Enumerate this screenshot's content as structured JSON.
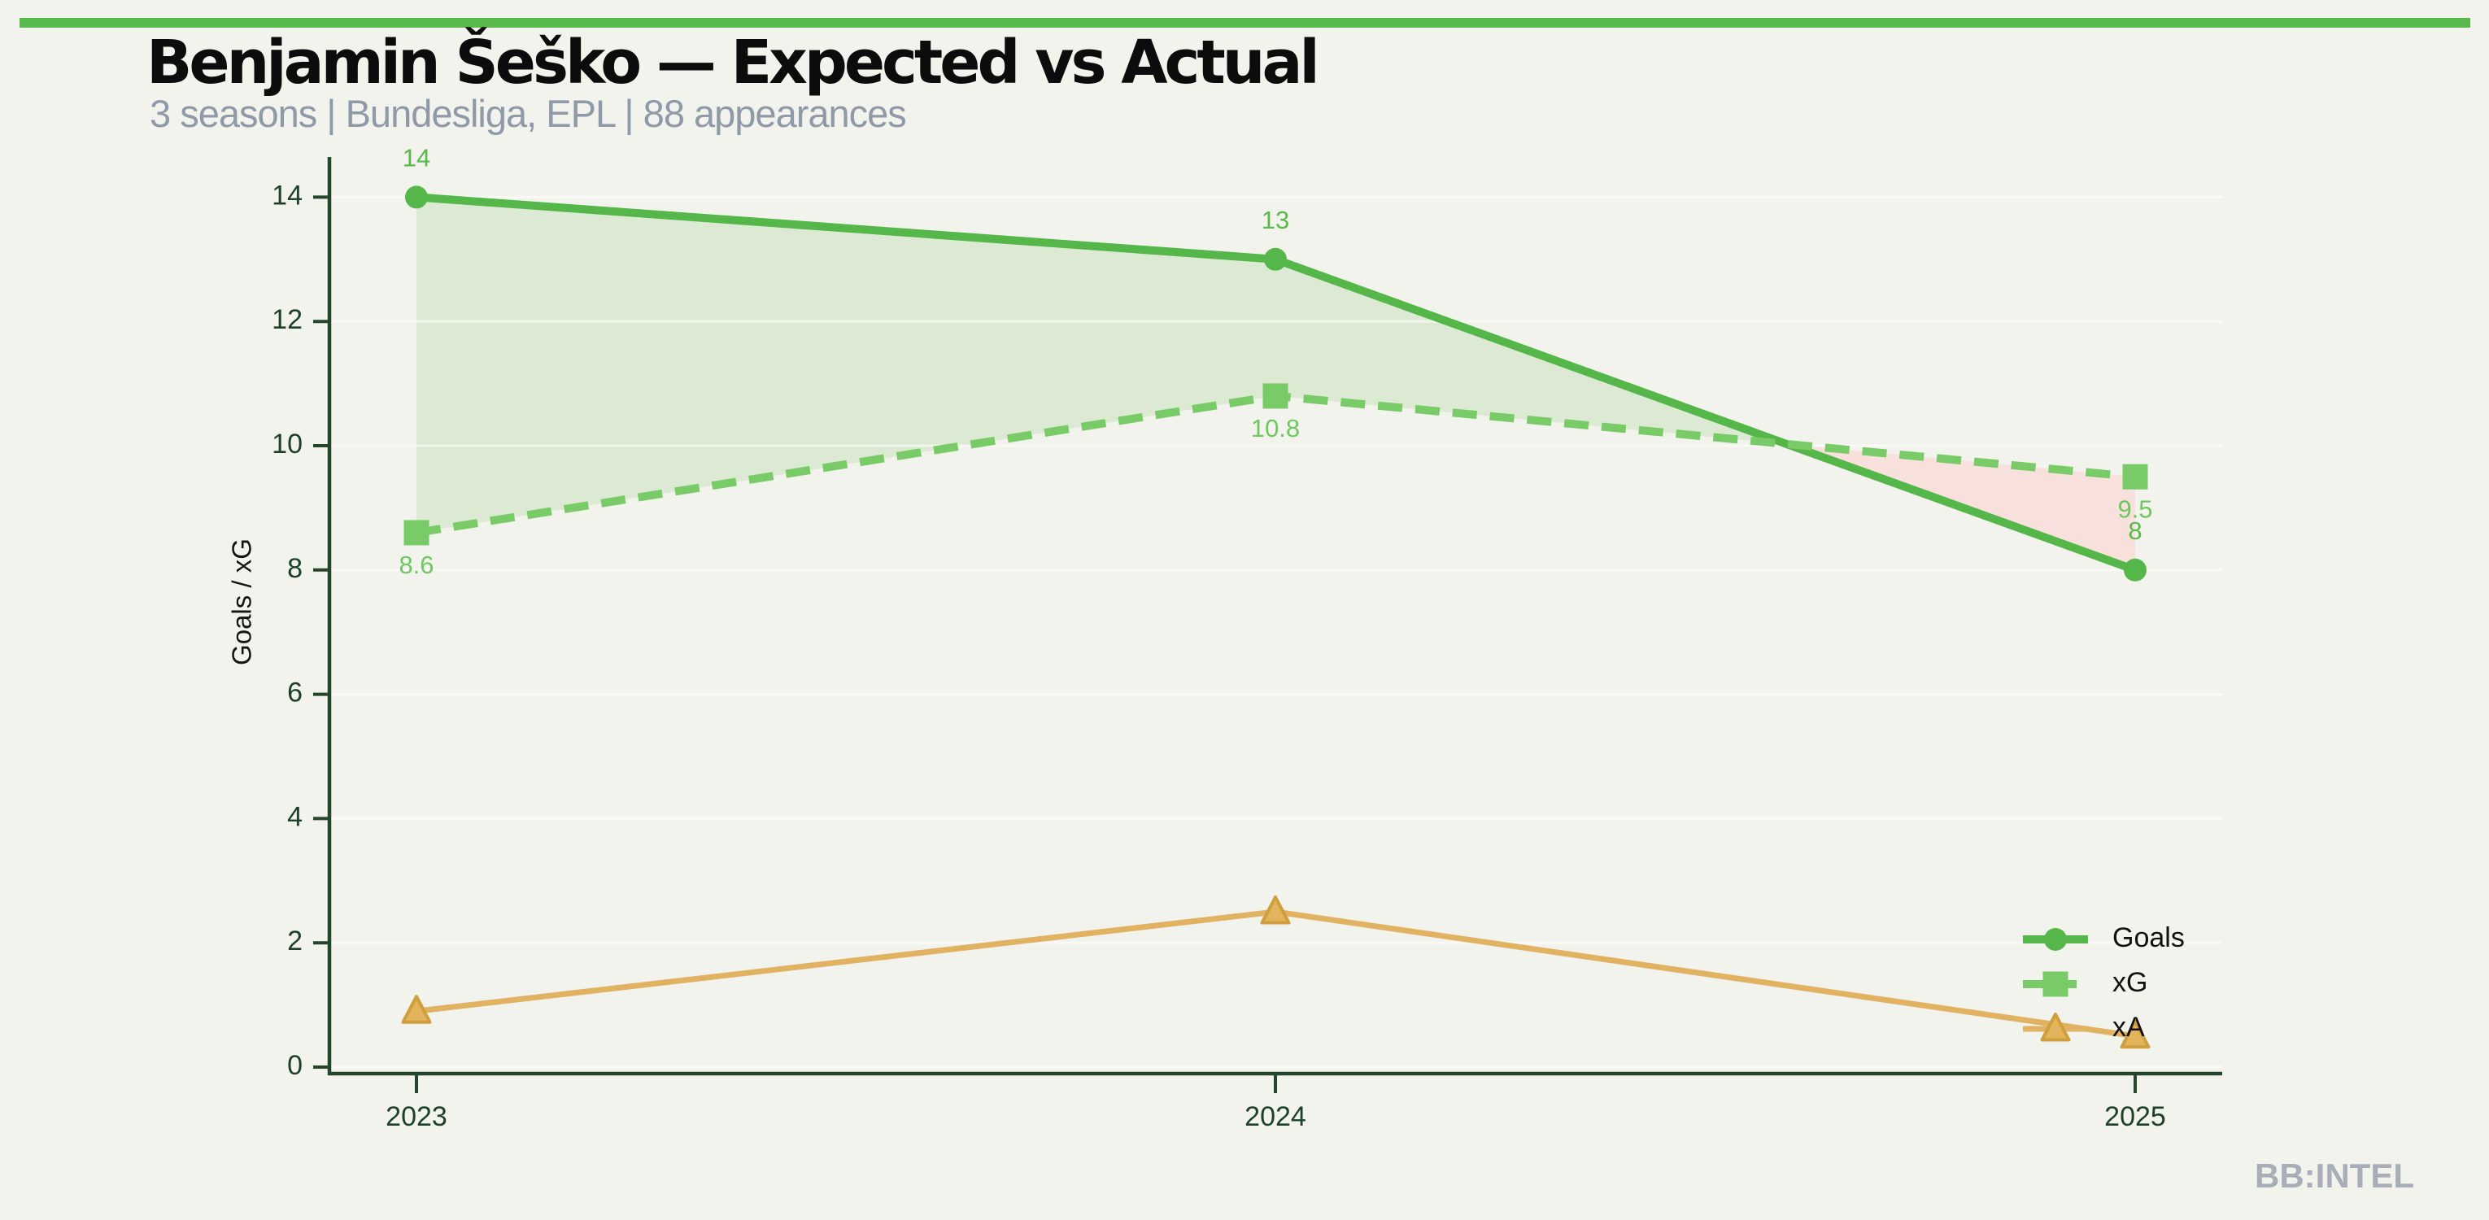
{
  "header": {
    "title": "Benjamin Šeško — Expected vs Actual",
    "subtitle": "3 seasons | Bundesliga, EPL | 88 appearances"
  },
  "footer": {
    "watermark": "BB:INTEL"
  },
  "colors": {
    "background": "#f2f3ec",
    "accent_bar": "#5ab94b",
    "title": "#0c0c0c",
    "subtitle": "#8f99a7",
    "axis": "#24462a",
    "tick_text": "#1d4126",
    "gridline": "rgba(255,255,255,0.55)",
    "legend_text": "#111111",
    "watermark": "#a8adb8"
  },
  "chart_data": {
    "type": "line",
    "title": "Benjamin Šeško — Expected vs Actual",
    "subtitle": "3 seasons | Bundesliga, EPL | 88 appearances",
    "x": [
      "2023",
      "2024",
      "2025"
    ],
    "xlabel": "",
    "ylabel": "Goals / xG",
    "ylim": [
      0,
      14
    ],
    "yticks": [
      0,
      2,
      4,
      6,
      8,
      10,
      12,
      14
    ],
    "grid": true,
    "legend_position": "lower-right",
    "legend_entries": [
      "Goals",
      "xG",
      "xA"
    ],
    "series": [
      {
        "name": "Goals",
        "values": [
          14,
          13,
          8
        ],
        "labels": [
          "14",
          "13",
          "8"
        ],
        "label_side": "above",
        "color": "#55b649",
        "label_color": "#58ba4a",
        "line": "solid",
        "marker": "circle"
      },
      {
        "name": "xG",
        "values": [
          8.6,
          10.8,
          9.5
        ],
        "labels": [
          "8.6",
          "10.8",
          "9.5"
        ],
        "label_side": "below",
        "color": "#78cb67",
        "label_color": "#6fc761",
        "line": "dashed",
        "marker": "square"
      },
      {
        "name": "xA",
        "values": [
          0.9,
          2.5,
          0.5
        ],
        "labels": [],
        "label_side": "none",
        "color": "#e0b261",
        "marker_fill": "#e3b45c",
        "marker_stroke": "#cf9f3e",
        "line": "solid",
        "marker": "triangle"
      }
    ],
    "fills": [
      {
        "upper": "Goals",
        "lower": "xG",
        "color": "#dcead3",
        "meaning": "goals above xG"
      },
      {
        "upper": "xG",
        "lower": "Goals",
        "color": "#f8e1dd",
        "meaning": "goals below xG"
      }
    ]
  }
}
